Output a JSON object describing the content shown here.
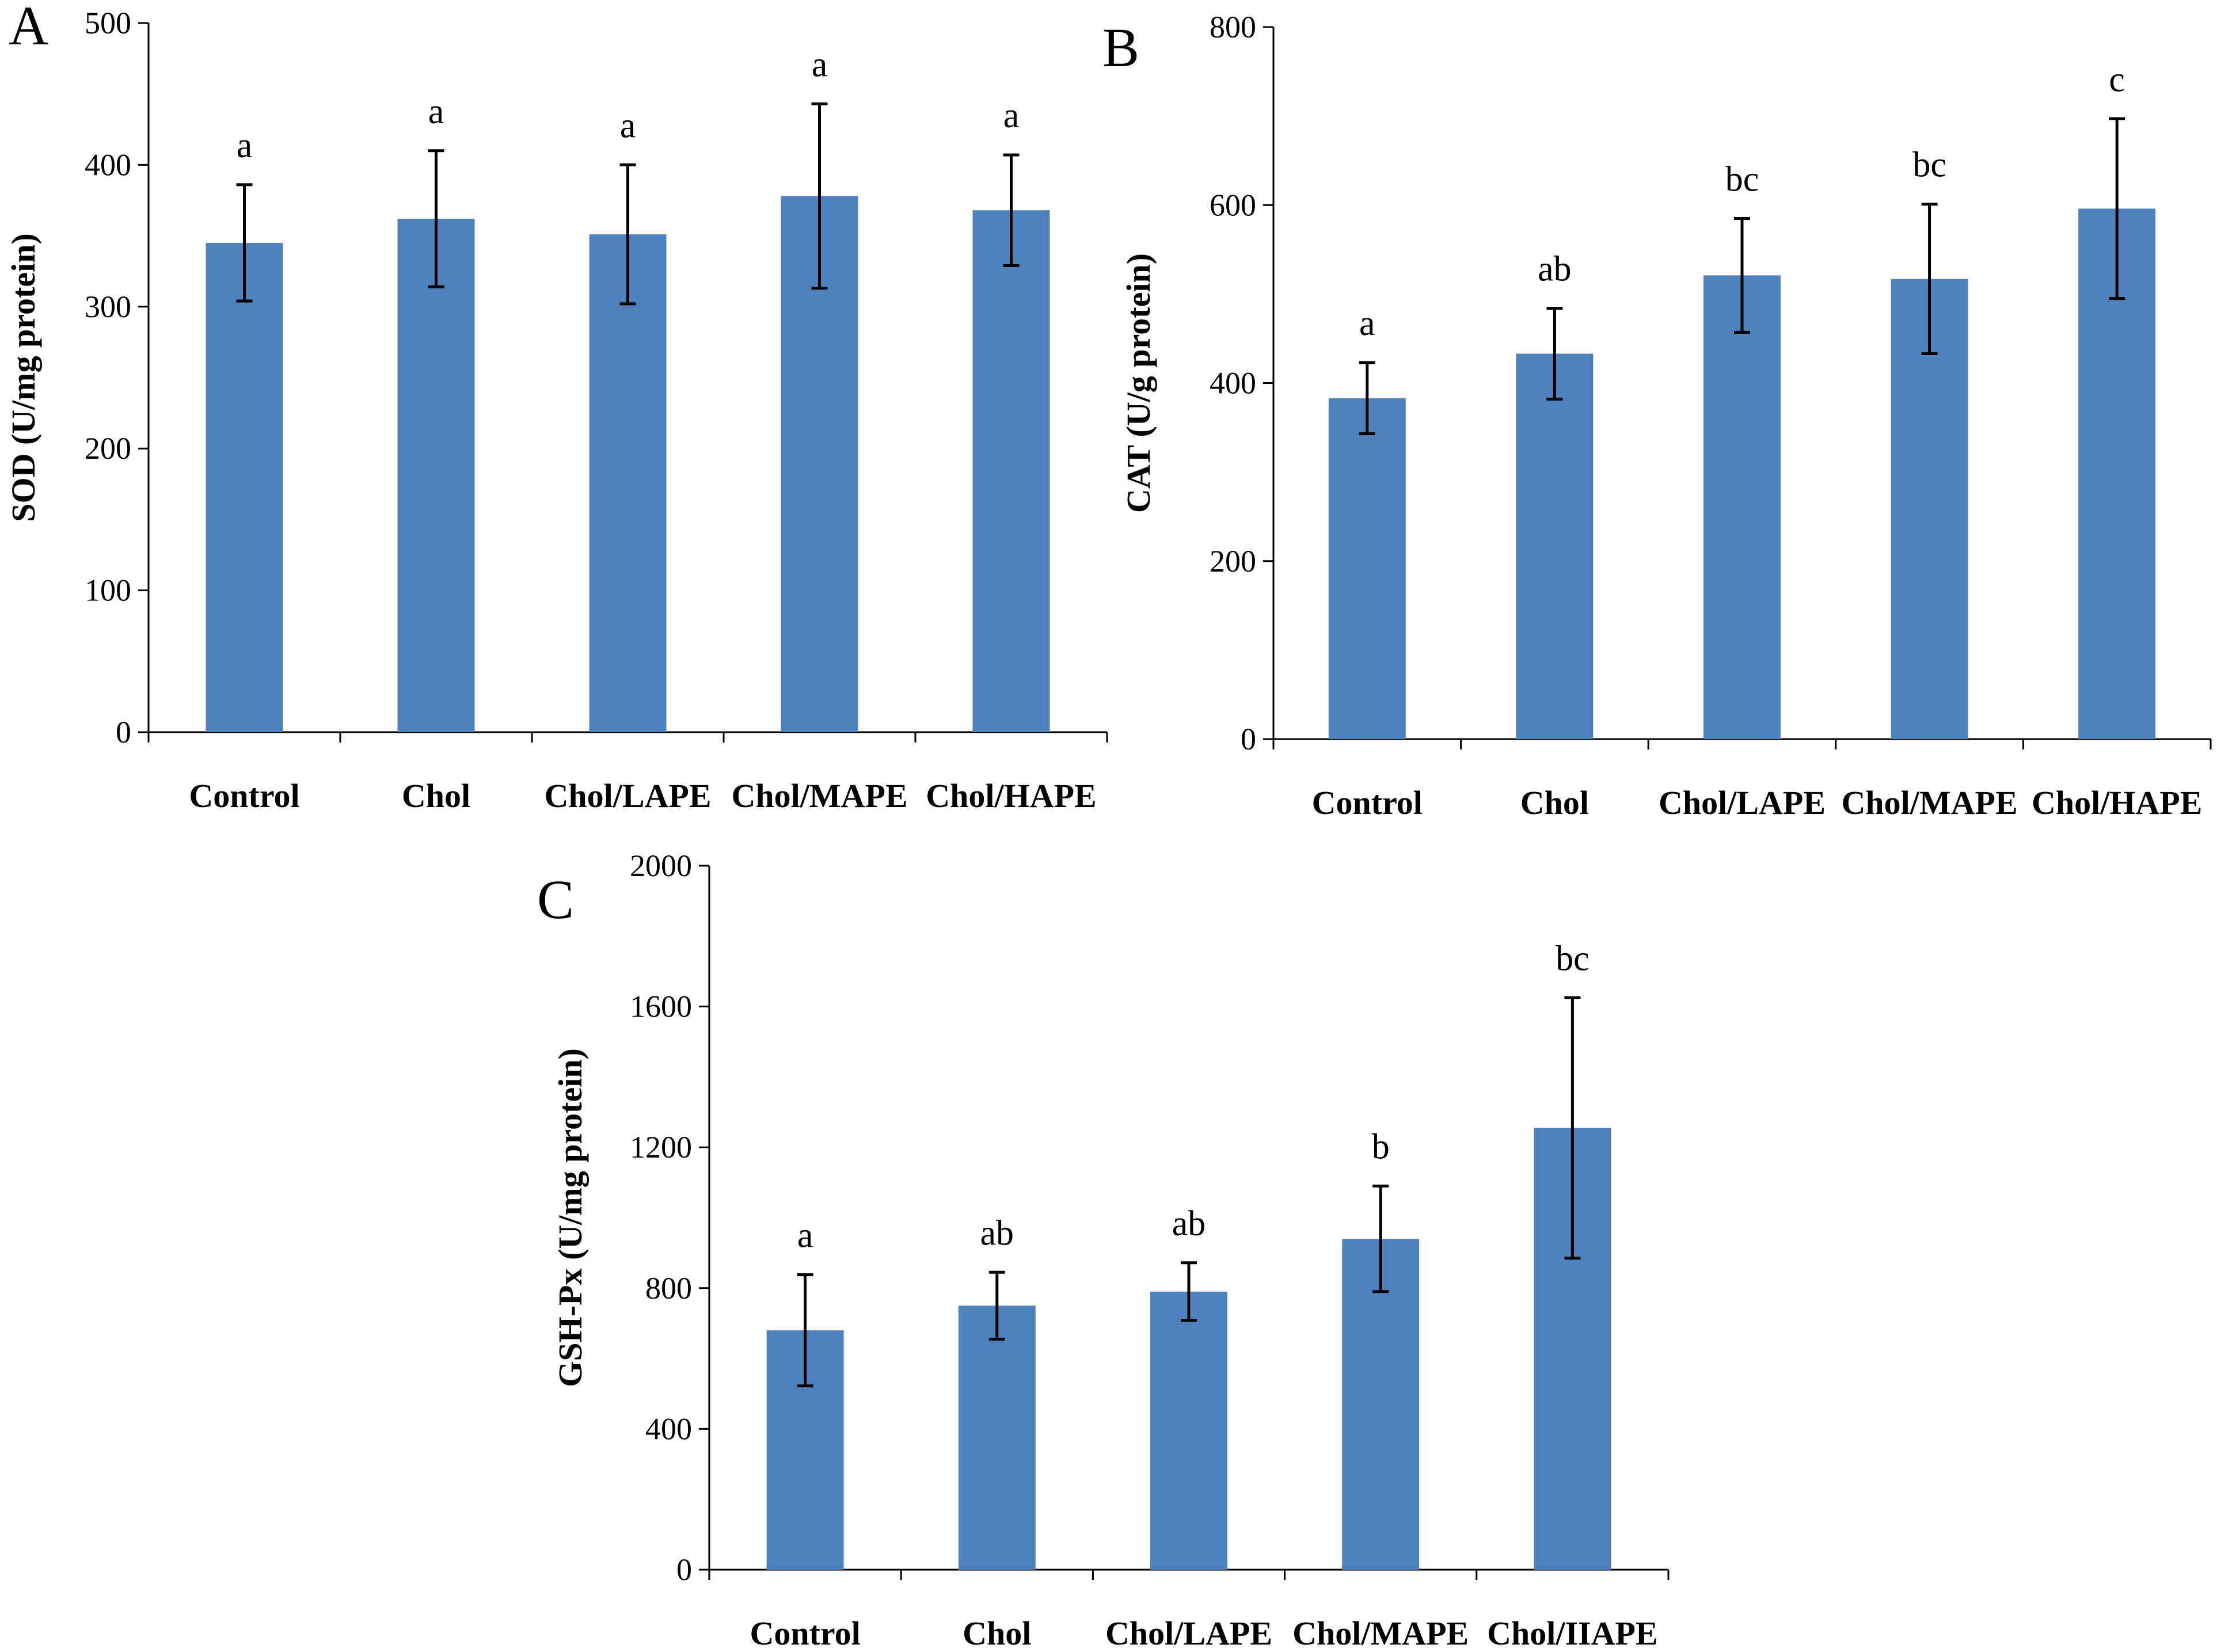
{
  "chart_data": [
    {
      "panel": "A",
      "type": "bar",
      "ylabel": "SOD (U/mg protein)",
      "categories": [
        "Control",
        "Chol",
        "Chol/LAPE",
        "Chol/MAPE",
        "Chol/HAPE"
      ],
      "values": [
        345,
        362,
        351,
        378,
        368
      ],
      "errors": [
        41,
        48,
        49,
        65,
        39
      ],
      "letters": [
        "a",
        "a",
        "a",
        "a",
        "a"
      ],
      "yticks": [
        "0",
        "100",
        "200",
        "300",
        "400",
        "500"
      ],
      "ylim": [
        0,
        500
      ],
      "bar_color": "#4F81BD"
    },
    {
      "panel": "B",
      "type": "bar",
      "ylabel": "CAT (U/g protein)",
      "categories": [
        "Control",
        "Chol",
        "Chol/LAPE",
        "Chol/MAPE",
        "Chol/HAPE"
      ],
      "values": [
        383,
        433,
        521,
        517,
        596
      ],
      "errors": [
        40,
        51,
        64,
        84,
        101
      ],
      "letters": [
        "a",
        "ab",
        "bc",
        "bc",
        "c"
      ],
      "yticks": [
        "0",
        "200",
        "400",
        "600",
        "800"
      ],
      "ylim": [
        0,
        800
      ],
      "bar_color": "#4F81BD"
    },
    {
      "panel": "C",
      "type": "bar",
      "ylabel": "GSH-Px (U/mg protein)",
      "categories": [
        "Control",
        "Chol",
        "Chol/LAPE",
        "Chol/MAPE",
        "Chol/IIAPE"
      ],
      "values": [
        680,
        750,
        790,
        940,
        1255
      ],
      "errors": [
        158,
        95,
        82,
        150,
        370
      ],
      "letters": [
        "a",
        "ab",
        "ab",
        "b",
        "bc"
      ],
      "yticks": [
        "0",
        "400",
        "800",
        "1200",
        "1600",
        "2000"
      ],
      "ylim": [
        0,
        2000
      ],
      "bar_color": "#4F81BD"
    }
  ]
}
